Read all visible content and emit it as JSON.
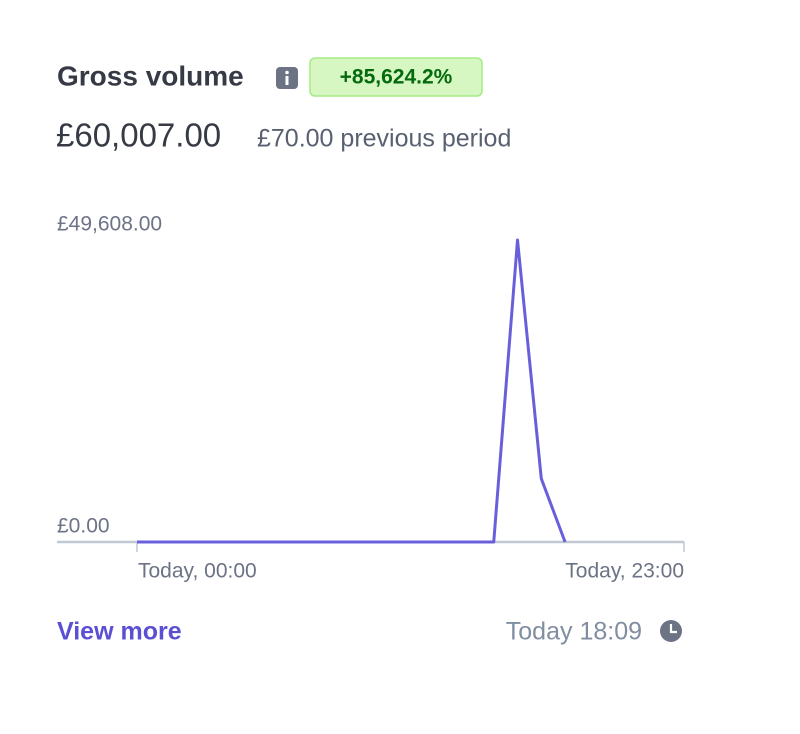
{
  "header": {
    "title": "Gross volume",
    "change": "+85,624.2%",
    "total": "£60,007.00",
    "previous": "£70.00 previous period"
  },
  "chart_data": {
    "type": "line",
    "categories": [
      "Today, 00:00",
      null,
      null,
      null,
      null,
      null,
      null,
      null,
      null,
      null,
      null,
      null,
      null,
      null,
      null,
      null,
      null,
      null,
      null,
      null,
      null,
      null,
      null,
      "Today, 23:00"
    ],
    "series": [
      {
        "color": "#6a5fdb",
        "values": [
          0,
          0,
          0,
          0,
          0,
          0,
          0,
          0,
          0,
          0,
          0,
          0,
          0,
          0,
          0,
          0,
          49608,
          10399,
          0,
          null,
          null,
          null,
          null,
          null
        ]
      }
    ],
    "ylim": [
      0,
      49608
    ],
    "yticks": [
      {
        "value": 0,
        "label": "£0.00"
      },
      {
        "value": 49608,
        "label": "£49,608.00"
      }
    ]
  },
  "footer": {
    "link": "View more",
    "updated": "Today 18:09"
  }
}
